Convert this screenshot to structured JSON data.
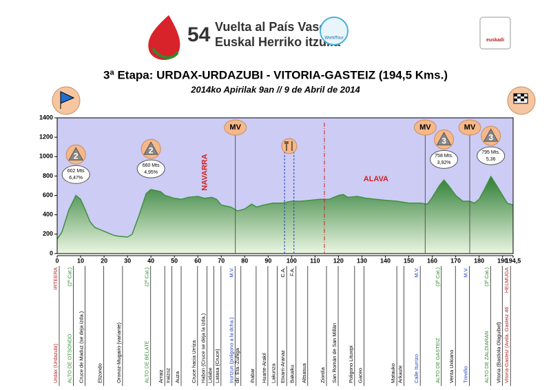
{
  "header": {
    "number": "54",
    "line1": "Vuelta al País Vasco",
    "line2": "Euskal Herriko itzulia",
    "badge": "WorldTour",
    "sponsor": "euskadi"
  },
  "chart_data": {
    "type": "area",
    "title": "3ª Etapa: URDAX-URDAZUBI - VITORIA-GASTEIZ (194,5 Kms.)",
    "subtitle": "2014ko Apirilak 9an // 9 de Abril de 2014",
    "color": "#3f8f3f",
    "background": "#ccccf5",
    "x": [
      0,
      2,
      5,
      8,
      10,
      12,
      14,
      16,
      18,
      20,
      22,
      24,
      26,
      28,
      30,
      32,
      35,
      38,
      40,
      44,
      46,
      50,
      53,
      56,
      60,
      63,
      66,
      68,
      70,
      74,
      77,
      80,
      83,
      85,
      88,
      92,
      96,
      100,
      104,
      108,
      112,
      116,
      118,
      120,
      122,
      124,
      128,
      132,
      136,
      140,
      145,
      150,
      155,
      158,
      160,
      163,
      165,
      167,
      170,
      173,
      176,
      178,
      180,
      182,
      185,
      187,
      190,
      192,
      194.5
    ],
    "values": [
      150,
      220,
      450,
      600,
      560,
      450,
      330,
      270,
      250,
      230,
      210,
      190,
      180,
      175,
      170,
      200,
      400,
      620,
      660,
      640,
      600,
      570,
      560,
      580,
      590,
      570,
      580,
      560,
      500,
      480,
      440,
      460,
      510,
      480,
      500,
      520,
      520,
      540,
      540,
      550,
      560,
      560,
      580,
      600,
      610,
      580,
      590,
      570,
      560,
      550,
      540,
      520,
      520,
      510,
      580,
      700,
      758,
      700,
      600,
      540,
      540,
      520,
      560,
      650,
      795,
      720,
      600,
      520,
      500
    ],
    "xlim": [
      0,
      194.5
    ],
    "xticks": [
      0,
      10,
      20,
      30,
      40,
      50,
      60,
      70,
      80,
      90,
      100,
      110,
      120,
      130,
      140,
      150,
      160,
      170,
      180,
      190,
      {
        "value": 194.5,
        "label": "194,5"
      }
    ],
    "ylim": [
      0,
      1400
    ],
    "yticks": [
      0,
      200,
      400,
      600,
      800,
      1000,
      1200,
      1400
    ],
    "regions": [
      "NAVARRA",
      "ALAVA"
    ],
    "markers": [
      {
        "label": "MV",
        "km": 76
      },
      {
        "label": "MV",
        "km": 157
      },
      {
        "label": "MV",
        "km": 176
      }
    ],
    "climbs": [
      {
        "km": 8,
        "category": "2",
        "altitude": 602,
        "altitude_label": "602 Mts",
        "gradient": "6,47%"
      },
      {
        "km": 40,
        "category": "2",
        "altitude": 660,
        "altitude_label": "660 Mts",
        "gradient": "4,95%"
      },
      {
        "km": 165,
        "category": "3",
        "altitude": 758,
        "altitude_label": "758 Mts.",
        "gradient": "3,92%"
      },
      {
        "km": 185,
        "category": "3",
        "altitude": 795,
        "altitude_label": "795 Mts.",
        "gradient": "5,36"
      }
    ],
    "waypoints": [
      {
        "km": 0,
        "top": "IRTEERA",
        "name": "Urdax (Urdazubi)",
        "color": "#b22222"
      },
      {
        "km": 6,
        "top": "(2º Cat.)",
        "name": "ALTO DE OTSONDO",
        "color": "#2e8b2e"
      },
      {
        "km": 11,
        "name": "Cruce de Maduz (se deja izda.)",
        "color": "#000000"
      },
      {
        "km": 19,
        "name": "Elizondo",
        "color": "#000000"
      },
      {
        "km": 27,
        "name": "Oronoz-Mugairo (variante)",
        "color": "#000000"
      },
      {
        "km": 39,
        "top": "(2º Cat.)",
        "name": "ALTO DE BELATE",
        "color": "#2e8b2e"
      },
      {
        "km": 45,
        "name": "Arraiz",
        "color": "#000000"
      },
      {
        "km": 48,
        "name": "Iraizoz",
        "color": "#000000"
      },
      {
        "km": 52,
        "name": "Auza",
        "color": "#000000"
      },
      {
        "km": 59,
        "name": "Cruce hacia Urriza",
        "color": "#000000"
      },
      {
        "km": 63,
        "name": "Habon (Cruce se deja la izda.)",
        "color": "#000000"
      },
      {
        "km": 66,
        "name": "Lidabe",
        "color": "#000000"
      },
      {
        "km": 69,
        "name": "Latasa (Cruce)",
        "color": "#000000"
      },
      {
        "km": 75,
        "top": "M.V.",
        "name": "Irurtzun (poligono a la dcha.)",
        "color": "#1f3fbf"
      },
      {
        "km": 77.5,
        "name": "dir. Eta.-Zuñiga",
        "color": "#000000"
      },
      {
        "km": 84,
        "name": "Ihabar",
        "color": "#000000"
      },
      {
        "km": 89,
        "name": "Huarte-Arakil",
        "color": "#000000"
      },
      {
        "km": 93,
        "name": "Lakunza",
        "color": "#000000"
      },
      {
        "km": 97,
        "top": "C.A.",
        "name": "Etxarri-Aranaz",
        "color": "#000000"
      },
      {
        "km": 101,
        "top": "F.A.",
        "name": "Bakaiku",
        "color": "#000000"
      },
      {
        "km": 106,
        "name": "Altsasua",
        "color": "#000000"
      },
      {
        "km": 114,
        "name": "Ziordia",
        "color": "#000000"
      },
      {
        "km": 119,
        "name": "San Román de San Millán",
        "color": "#000000"
      },
      {
        "km": 126,
        "name": "Poligono Lituxipi",
        "color": "#000000"
      },
      {
        "km": 130,
        "name": "Gaceo",
        "color": "#000000"
      },
      {
        "km": 144,
        "name": "Matauko",
        "color": "#000000"
      },
      {
        "km": 147,
        "name": "Arkaute",
        "color": "#000000"
      },
      {
        "km": 154,
        "top": "M.V.",
        "name": "Calle Iturrizo",
        "color": "#1f3fbf"
      },
      {
        "km": 163,
        "top": "(3º Cat.)",
        "name": "ALTO DE GASTEIZ",
        "color": "#2e8b2e"
      },
      {
        "km": 169,
        "name": "Venta Uxkiano",
        "color": "#000000"
      },
      {
        "km": 175,
        "top": "M.V.",
        "name": "Treviño",
        "color": "#1f3fbf"
      },
      {
        "km": 184,
        "top": "(3º Cat.)",
        "name": "ALTO DE ZALDIARAN",
        "color": "#2e8b2e"
      },
      {
        "km": 189,
        "name": "Vitoria (Bastiola Olaguibel)",
        "color": "#000000"
      },
      {
        "km": 192.5,
        "top": "HELMUGA",
        "name": "Vitoria-Gasteiz (Avda. Gasteiz 46",
        "color": "#b22222"
      }
    ]
  }
}
